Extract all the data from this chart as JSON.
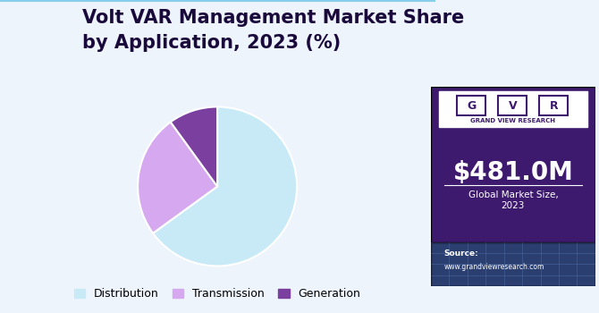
{
  "title_line1": "Volt VAR Management Market Share",
  "title_line2": "by Application, 2023 (%)",
  "slices": [
    65.0,
    25.0,
    10.0
  ],
  "labels": [
    "Distribution",
    "Transmission",
    "Generation"
  ],
  "colors": [
    "#c8eaf7",
    "#d5a8f0",
    "#7b3fa0"
  ],
  "startangle": 90,
  "bg_color": "#eef4fb",
  "right_bg_color": "#3d1a6e",
  "market_size": "$481.0M",
  "market_label_line1": "Global Market Size,",
  "market_label_line2": "2023",
  "legend_fontsize": 9,
  "title_fontsize": 15,
  "subtitle_fontsize": 10
}
